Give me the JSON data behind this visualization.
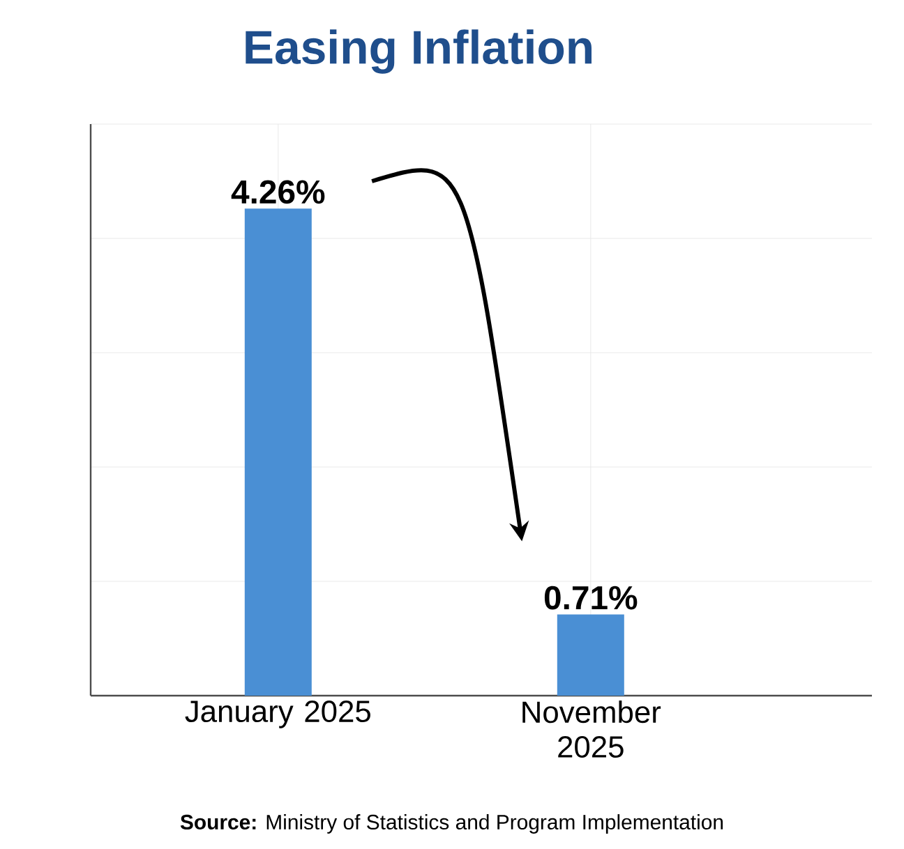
{
  "chart_data": {
    "type": "bar",
    "title": "Easing Inflation",
    "categories": [
      "January 2025",
      "November 2025"
    ],
    "values": [
      4.26,
      0.71
    ],
    "value_labels": [
      "4.26%",
      "0.71%"
    ],
    "color": "#4a8fd4",
    "ylim": [
      0,
      5
    ],
    "yticks": [
      {
        "value": 0,
        "label": null
      },
      {
        "value": 1,
        "label": null
      },
      {
        "value": 2,
        "label": null
      },
      {
        "value": 3,
        "label": null
      },
      {
        "value": 4,
        "label": null
      },
      {
        "value": 5,
        "label": null
      }
    ],
    "grid": true,
    "tick_labels": "x",
    "annotations": [
      "**Source:** Ministry of Statistics and Program Implementation"
    ]
  }
}
